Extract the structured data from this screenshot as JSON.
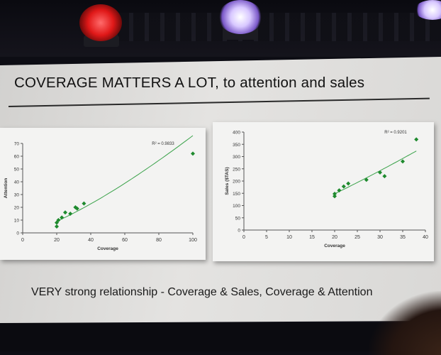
{
  "slide": {
    "title": "COVERAGE MATTERS A LOT, to attention and sales",
    "caption": "VERY strong relationship - Coverage & Sales, Coverage & Attention"
  },
  "colors": {
    "marker": "#1e8a2e",
    "trend": "#3aa24a",
    "axis": "#555555"
  },
  "chart_data": [
    {
      "type": "scatter",
      "title": "",
      "xlabel": "Coverage",
      "ylabel": "Attention",
      "xlim": [
        0,
        100
      ],
      "ylim": [
        0,
        70
      ],
      "xticks": [
        0,
        20,
        40,
        60,
        80,
        100
      ],
      "yticks": [
        0,
        10,
        20,
        30,
        40,
        50,
        60,
        70
      ],
      "annotation": "R² = 0.9833",
      "trendline": "power",
      "grid": false,
      "series": [
        {
          "points": [
            [
              20,
              5
            ],
            [
              20,
              8
            ],
            [
              21,
              10
            ],
            [
              23,
              12
            ],
            [
              25,
              16
            ],
            [
              28,
              15
            ],
            [
              31,
              20
            ],
            [
              32,
              19
            ],
            [
              36,
              23
            ],
            [
              100,
              62
            ]
          ]
        }
      ]
    },
    {
      "type": "scatter",
      "title": "",
      "xlabel": "Coverage",
      "ylabel": "Sales ($TAS)",
      "xlim": [
        0,
        40
      ],
      "ylim": [
        0,
        400
      ],
      "xticks": [
        0,
        5,
        10,
        15,
        20,
        25,
        30,
        35,
        40
      ],
      "yticks": [
        0,
        50,
        100,
        150,
        200,
        250,
        300,
        350,
        400
      ],
      "annotation": "R² = 0.9201",
      "trendline": "power",
      "grid": false,
      "series": [
        {
          "points": [
            [
              20,
              138
            ],
            [
              20,
              148
            ],
            [
              21,
              162
            ],
            [
              22,
              178
            ],
            [
              23,
              190
            ],
            [
              27,
              205
            ],
            [
              30,
              235
            ],
            [
              31,
              220
            ],
            [
              35,
              280
            ],
            [
              38,
              370
            ]
          ]
        }
      ]
    }
  ]
}
